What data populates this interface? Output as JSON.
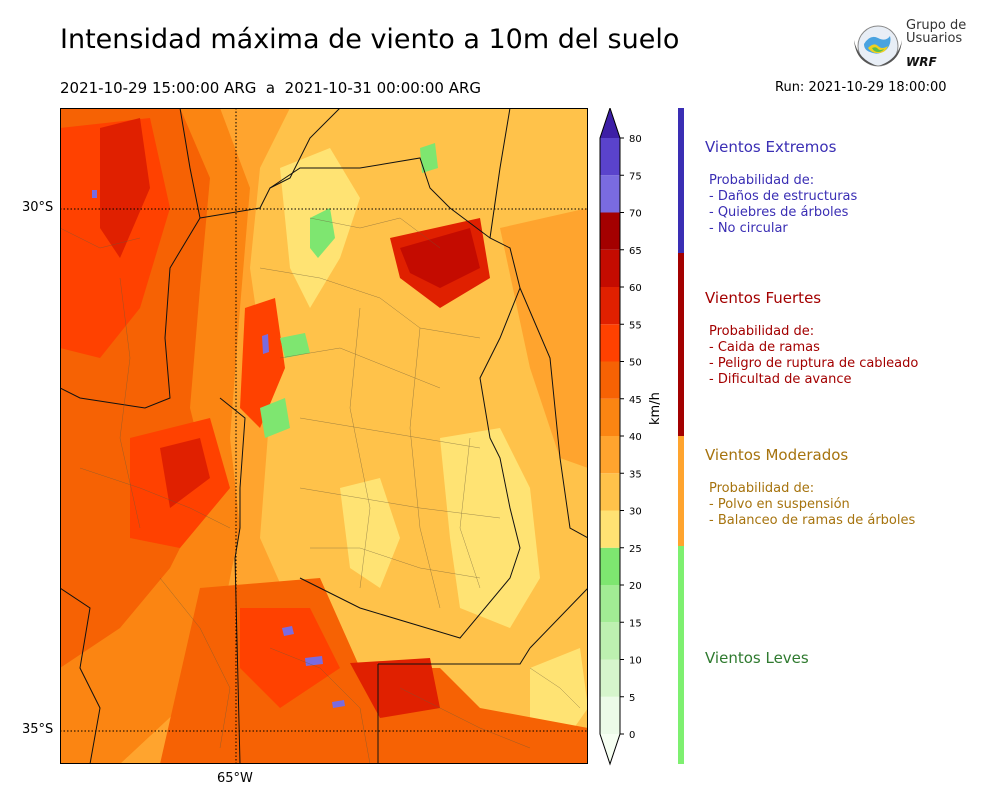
{
  "header": {
    "title": "Intensidad máxima de viento a 10m del suelo",
    "period": "2021-10-29 15:00:00 ARG  a  2021-10-31 00:00:00 ARG",
    "run": "Run: 2021-10-29 18:00:00"
  },
  "logo": {
    "line1": "Grupo de",
    "line2": "Usuarios",
    "line3": "WRF"
  },
  "map": {
    "lat_labels": [
      "30°S",
      "35°S"
    ],
    "lon_labels": [
      "65°W"
    ],
    "graticule": "dotted"
  },
  "colorbar": {
    "unit": "km/h",
    "ticks": [
      "80",
      "75",
      "70",
      "65",
      "60",
      "55",
      "50",
      "45",
      "40",
      "35",
      "30",
      "25",
      "20",
      "15",
      "10",
      "5",
      "0"
    ],
    "levels": [
      {
        "from": 0,
        "to": 5,
        "color": "#ecfbe8"
      },
      {
        "from": 5,
        "to": 10,
        "color": "#d6f5cc"
      },
      {
        "from": 10,
        "to": 15,
        "color": "#bdf0b0"
      },
      {
        "from": 15,
        "to": 20,
        "color": "#a2ec94"
      },
      {
        "from": 20,
        "to": 25,
        "color": "#7ee670"
      },
      {
        "from": 25,
        "to": 30,
        "color": "#ffe373"
      },
      {
        "from": 30,
        "to": 35,
        "color": "#ffc24a"
      },
      {
        "from": 35,
        "to": 40,
        "color": "#ffa42e"
      },
      {
        "from": 40,
        "to": 45,
        "color": "#fb8512"
      },
      {
        "from": 45,
        "to": 50,
        "color": "#f66204"
      },
      {
        "from": 50,
        "to": 55,
        "color": "#ff4100"
      },
      {
        "from": 55,
        "to": 60,
        "color": "#e02000"
      },
      {
        "from": 60,
        "to": 65,
        "color": "#c40b00"
      },
      {
        "from": 65,
        "to": 70,
        "color": "#a30000"
      },
      {
        "from": 70,
        "to": 75,
        "color": "#7a6be0"
      },
      {
        "from": 75,
        "to": 80,
        "color": "#5a43cc"
      }
    ],
    "extend_min_color": "#f6fff2",
    "extend_max_color": "#3d1fa6"
  },
  "legend": [
    {
      "title": "Vientos Extremos",
      "color": "#3a2eb4",
      "band_color": "#3a2eb4",
      "items": [
        "Probabilidad de:",
        "- Daños de estructuras",
        "- Quiebres de árboles",
        "- No circular"
      ]
    },
    {
      "title": "Vientos Fuertes",
      "color": "#a30000",
      "band_color": "#a30000",
      "items": [
        "Probabilidad de:",
        "- Caida de ramas",
        "- Peligro de ruptura de cableado",
        "- Dificultad de avance"
      ]
    },
    {
      "title": "Vientos Moderados",
      "color": "#a6730e",
      "band_color": "#ffa42e",
      "items": [
        "Probabilidad de:",
        "- Polvo en suspensión",
        "- Balanceo de ramas de árboles"
      ]
    },
    {
      "title": "Vientos Leves",
      "color": "#2f7a2f",
      "band_color": "#7ef070",
      "items": []
    }
  ]
}
